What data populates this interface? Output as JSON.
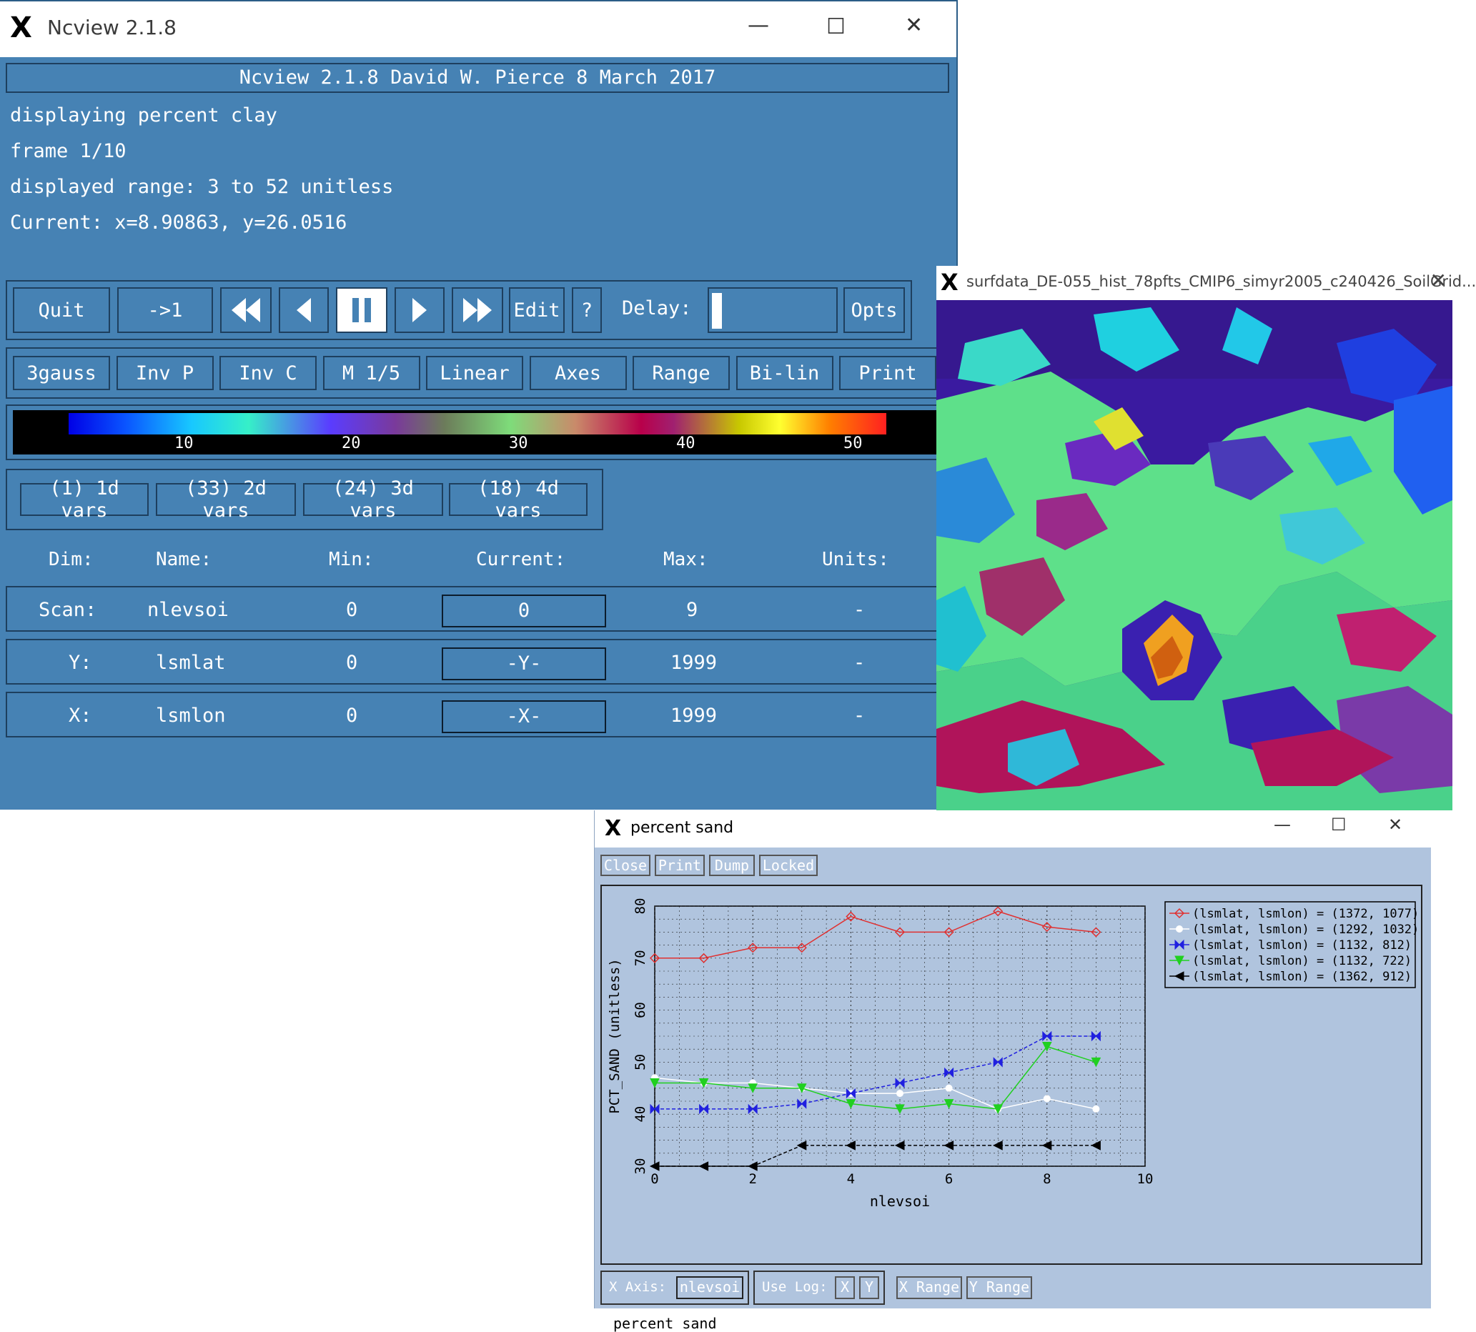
{
  "ncview": {
    "window_title": "Ncview 2.1.8",
    "banner": "Ncview 2.1.8 David W. Pierce  8 March 2017",
    "displaying": "displaying percent clay",
    "frame": "frame 1/10",
    "range": "displayed range: 3 to 52 unitless",
    "current": "Current: x=8.90863, y=26.0516",
    "buttons": {
      "quit": "Quit",
      "to_first": "->1",
      "edit": "Edit",
      "help": "?",
      "delay_label": "Delay:",
      "opts": "Opts"
    },
    "delay_level": 0.02,
    "options": [
      "3gauss",
      "Inv P",
      "Inv C",
      "M 1/5",
      "Linear",
      "Axes",
      "Range",
      "Bi-lin",
      "Print"
    ],
    "colorbar_ticks": [
      "10",
      "20",
      "30",
      "40",
      "50"
    ],
    "var_groups": [
      "(1) 1d vars",
      "(33) 2d vars",
      "(24) 3d vars",
      "(18) 4d vars"
    ],
    "dim_headers": {
      "dim": "Dim:",
      "name": "Name:",
      "min": "Min:",
      "current": "Current:",
      "max": "Max:",
      "units": "Units:"
    },
    "dims": [
      {
        "dim": "Scan:",
        "name": "nlevsoi",
        "min": "0",
        "current": "0",
        "max": "9",
        "units": "-"
      },
      {
        "dim": "Y:",
        "name": "lsmlat",
        "min": "0",
        "current": "-Y-",
        "max": "1999",
        "units": "-"
      },
      {
        "dim": "X:",
        "name": "lsmlon",
        "min": "0",
        "current": "-X-",
        "max": "1999",
        "units": "-"
      }
    ],
    "colors": {
      "background": "#4682b4",
      "border": "#1e3f5e",
      "text": "#ffffff"
    }
  },
  "image_window": {
    "title": "surfdata_DE-055_hist_78pfts_CMIP6_simyr2005_c240426_SoilGrid..."
  },
  "plot_window": {
    "title": "percent sand",
    "buttons": [
      "Close",
      "Print",
      "Dump",
      "Locked"
    ],
    "footer_label": "percent sand",
    "bottom": {
      "x_axis_label": "X Axis:",
      "x_axis_value": "nlevsoi",
      "use_log_label": "Use Log:",
      "log_x": "X",
      "log_y": "Y",
      "x_range": "X Range",
      "y_range": "Y Range"
    }
  },
  "chart_data": {
    "type": "line",
    "title": "",
    "xlabel": "nlevsoi",
    "ylabel": "PCT_SAND (unitless)",
    "xlim": [
      0,
      10
    ],
    "ylim": [
      30,
      80
    ],
    "xticks": [
      "0",
      "2",
      "4",
      "6",
      "8",
      "10"
    ],
    "yticks": [
      "30",
      "40",
      "50",
      "60",
      "70",
      "80"
    ],
    "grid": true,
    "legend_position": "top-right",
    "x": [
      0,
      1,
      2,
      3,
      4,
      5,
      6,
      7,
      8,
      9
    ],
    "series": [
      {
        "name": "(lsmlat, lsmlon) = (1372, 1077)",
        "color": "#e03030",
        "marker": "diamond",
        "values": [
          70,
          70,
          72,
          72,
          78,
          75,
          75,
          79,
          76,
          75
        ]
      },
      {
        "name": "(lsmlat, lsmlon) = (1292, 1032)",
        "color": "#ffffff",
        "marker": "circle",
        "values": [
          47,
          46,
          46,
          45,
          44,
          44,
          45,
          41,
          43,
          41
        ]
      },
      {
        "name": "(lsmlat, lsmlon) = (1132, 812)",
        "color": "#2020e0",
        "marker": "bowtie",
        "values": [
          41,
          41,
          41,
          42,
          44,
          46,
          48,
          50,
          55,
          55
        ]
      },
      {
        "name": "(lsmlat, lsmlon) = (1132, 722)",
        "color": "#20d020",
        "marker": "triangle-down",
        "values": [
          46,
          46,
          45,
          45,
          42,
          41,
          42,
          41,
          53,
          50
        ]
      },
      {
        "name": "(lsmlat, lsmlon) = (1362, 912)",
        "color": "#000000",
        "marker": "triangle-left",
        "values": [
          30,
          30,
          30,
          34,
          34,
          34,
          34,
          34,
          34,
          34
        ]
      }
    ]
  }
}
